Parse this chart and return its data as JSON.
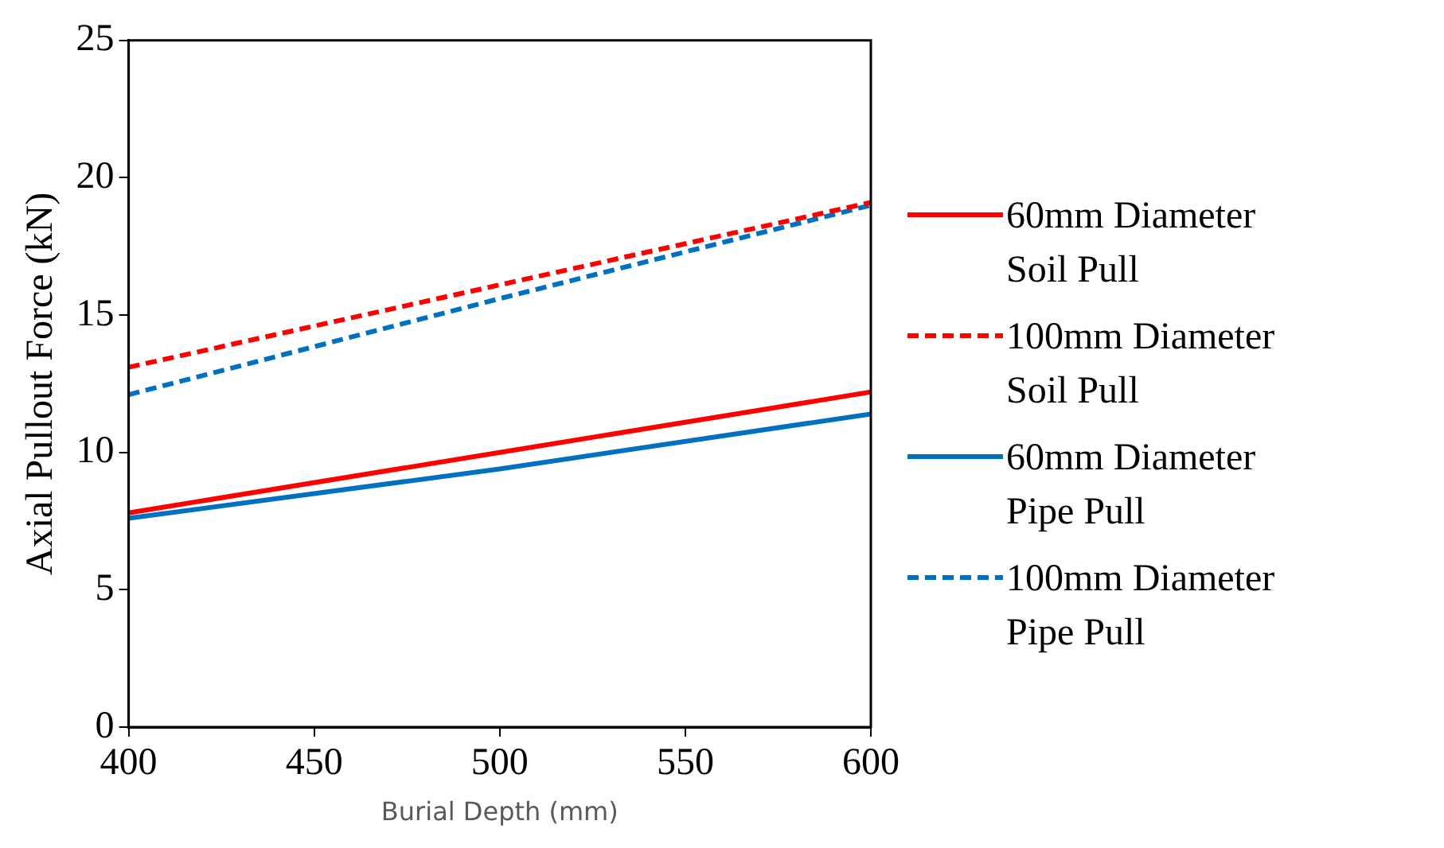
{
  "chart_data": {
    "type": "line",
    "xlabel": "Burial Depth (mm)",
    "ylabel": "Axial Pullout Force (kN)",
    "x": [
      400,
      500,
      600
    ],
    "series": [
      {
        "name": "60mm Diameter Soil Pull",
        "color": "#ff0000",
        "values": [
          7.8,
          10.0,
          12.2
        ],
        "line_style": "solid"
      },
      {
        "name": "100mm Diameter Soil Pull",
        "color": "#ff0000",
        "values": [
          13.1,
          16.1,
          19.1
        ],
        "line_style": "dashed"
      },
      {
        "name": "60mm Diameter Pipe Pull",
        "color": "#0070c0",
        "values": [
          7.6,
          9.4,
          11.4
        ],
        "line_style": "solid"
      },
      {
        "name": "100mm Diameter Pipe Pull",
        "color": "#0070c0",
        "values": [
          12.1,
          15.6,
          19.0
        ],
        "line_style": "dashed"
      }
    ],
    "xlim": [
      400,
      600
    ],
    "xticks": [
      400,
      450,
      500,
      550,
      600
    ],
    "ylim": [
      0,
      25
    ],
    "yticks": [
      0,
      5,
      10,
      15,
      20,
      25
    ],
    "grid": false,
    "legend": "right",
    "marker": "none"
  }
}
